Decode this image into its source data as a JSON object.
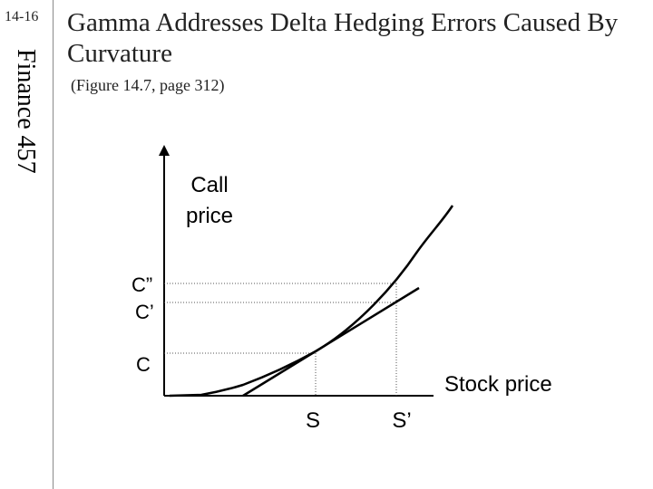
{
  "slide_number": "14-16",
  "side_label": "Finance 457",
  "title": "Gamma Addresses Delta Hedging Errors Caused By Curvature",
  "subtitle": "(Figure 14.7, page 312)",
  "diagram": {
    "y_axis_label_line1": "Call",
    "y_axis_label_line2": "price",
    "x_axis_label": "Stock price",
    "y_ticks": [
      "C”",
      "C’",
      "C"
    ],
    "x_ticks": [
      "S",
      "S’"
    ]
  }
}
